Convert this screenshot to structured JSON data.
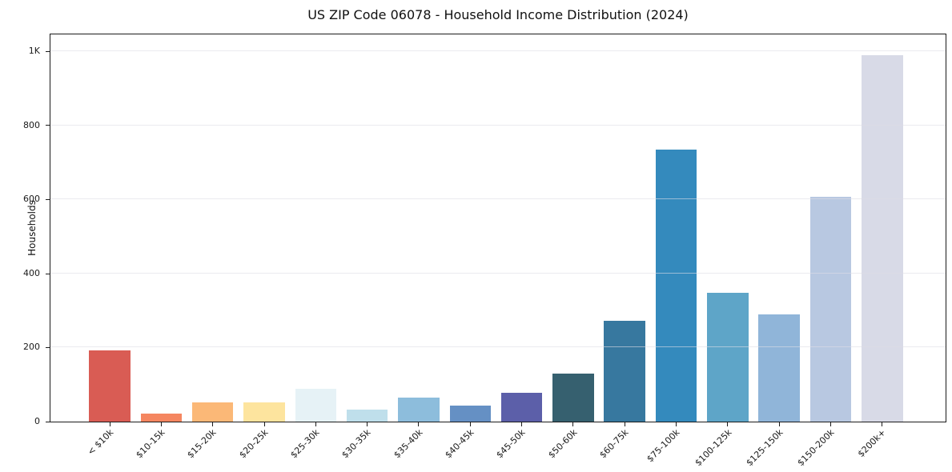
{
  "title": "US ZIP Code 06078 - Household Income Distribution (2024)",
  "chart_data": {
    "type": "bar",
    "title": "US ZIP Code 06078 - Household Income Distribution (2024)",
    "xlabel": "",
    "ylabel": "Households",
    "categories": [
      "< $10k",
      "$10-15k",
      "$15-20k",
      "$20-25k",
      "$25-30k",
      "$30-35k",
      "$35-40k",
      "$40-45k",
      "$45-50k",
      "$50-60k",
      "$60-75k",
      "$75-100k",
      "$100-125k",
      "$125-150k",
      "$150-200k",
      "$200k+"
    ],
    "values": [
      192,
      22,
      53,
      51,
      88,
      33,
      65,
      44,
      78,
      130,
      272,
      734,
      347,
      289,
      606,
      989
    ],
    "bar_colors": [
      "#d95c54",
      "#f58660",
      "#fbb877",
      "#fde49e",
      "#e6f2f6",
      "#bfdfeb",
      "#8dbddc",
      "#6590c4",
      "#5c5fa9",
      "#36606f",
      "#37789f",
      "#348abd",
      "#5ea5c8",
      "#90b5d9",
      "#b8c8e1",
      "#d8dae7"
    ],
    "ylim": [
      0,
      1045
    ],
    "yticks": [
      {
        "value": 0,
        "label": "0"
      },
      {
        "value": 200,
        "label": "200"
      },
      {
        "value": 400,
        "label": "400"
      },
      {
        "value": 600,
        "label": "600"
      },
      {
        "value": 800,
        "label": "800"
      },
      {
        "value": 1000,
        "label": "1K"
      }
    ],
    "grid": "horizontal",
    "x_tick_rotation": 45,
    "axis_color": "#1a1a1a",
    "background": "#ffffff"
  }
}
